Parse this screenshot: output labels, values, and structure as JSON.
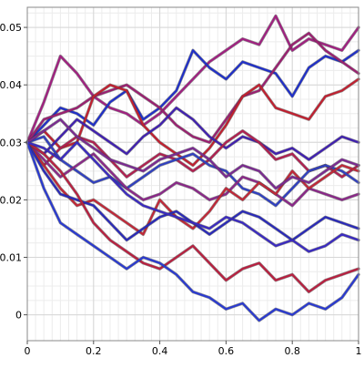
{
  "chart_data": {
    "type": "line",
    "title": "",
    "xlabel": "",
    "ylabel": "",
    "xlim": [
      0,
      1
    ],
    "ylim": [
      -0.0045,
      0.0535
    ],
    "grid": true,
    "legend": "none",
    "x_ticks": [
      0,
      0.2,
      0.4,
      0.6,
      0.8,
      1
    ],
    "x_tick_labels": [
      "0",
      "0.2",
      "0.4",
      "0.6",
      "0.8",
      "1"
    ],
    "y_ticks": [
      0,
      0.01,
      0.02,
      0.03,
      0.04,
      0.05
    ],
    "y_tick_labels": [
      "0",
      "0.01",
      "0.02",
      "0.03",
      "0.04",
      "0.05"
    ],
    "x": [
      0,
      0.05,
      0.1,
      0.15,
      0.2,
      0.25,
      0.3,
      0.35,
      0.4,
      0.45,
      0.5,
      0.55,
      0.6,
      0.65,
      0.7,
      0.75,
      0.8,
      0.85,
      0.9,
      0.95,
      1.0
    ],
    "series": [
      {
        "color": "#a02080",
        "values": [
          0.03,
          0.037,
          0.045,
          0.042,
          0.038,
          0.036,
          0.035,
          0.033,
          0.035,
          0.038,
          0.041,
          0.044,
          0.046,
          0.048,
          0.047,
          0.052,
          0.046,
          0.048,
          0.047,
          0.046,
          0.05
        ]
      },
      {
        "color": "#2030c8",
        "values": [
          0.03,
          0.033,
          0.036,
          0.035,
          0.033,
          0.037,
          0.039,
          0.034,
          0.036,
          0.039,
          0.046,
          0.043,
          0.041,
          0.044,
          0.043,
          0.042,
          0.038,
          0.043,
          0.045,
          0.044,
          0.046
        ]
      },
      {
        "color": "#9a2070",
        "values": [
          0.03,
          0.034,
          0.035,
          0.036,
          0.038,
          0.039,
          0.04,
          0.038,
          0.036,
          0.033,
          0.031,
          0.03,
          0.034,
          0.038,
          0.039,
          0.043,
          0.047,
          0.049,
          0.046,
          0.044,
          0.042
        ]
      },
      {
        "color": "#c02030",
        "values": [
          0.03,
          0.032,
          0.029,
          0.03,
          0.038,
          0.04,
          0.039,
          0.033,
          0.03,
          0.028,
          0.026,
          0.029,
          0.033,
          0.038,
          0.04,
          0.036,
          0.035,
          0.034,
          0.038,
          0.039,
          0.041
        ]
      },
      {
        "color": "#4020b0",
        "values": [
          0.03,
          0.028,
          0.031,
          0.034,
          0.032,
          0.03,
          0.028,
          0.031,
          0.033,
          0.036,
          0.034,
          0.031,
          0.029,
          0.031,
          0.03,
          0.028,
          0.029,
          0.027,
          0.029,
          0.031,
          0.03
        ]
      },
      {
        "color": "#b02050",
        "values": [
          0.03,
          0.026,
          0.029,
          0.031,
          0.03,
          0.027,
          0.024,
          0.026,
          0.028,
          0.027,
          0.025,
          0.027,
          0.03,
          0.032,
          0.03,
          0.027,
          0.028,
          0.025,
          0.026,
          0.024,
          0.026
        ]
      },
      {
        "color": "#3040c0",
        "values": [
          0.03,
          0.031,
          0.027,
          0.025,
          0.023,
          0.024,
          0.022,
          0.024,
          0.026,
          0.027,
          0.028,
          0.026,
          0.025,
          0.022,
          0.021,
          0.019,
          0.022,
          0.025,
          0.026,
          0.025,
          0.023
        ]
      },
      {
        "color": "#8a2888",
        "values": [
          0.03,
          0.027,
          0.024,
          0.026,
          0.028,
          0.025,
          0.022,
          0.02,
          0.021,
          0.023,
          0.022,
          0.02,
          0.021,
          0.024,
          0.023,
          0.021,
          0.019,
          0.022,
          0.021,
          0.02,
          0.021
        ]
      },
      {
        "color": "#c02838",
        "values": [
          0.03,
          0.026,
          0.022,
          0.019,
          0.02,
          0.018,
          0.016,
          0.014,
          0.02,
          0.017,
          0.015,
          0.018,
          0.022,
          0.02,
          0.023,
          0.021,
          0.025,
          0.022,
          0.024,
          0.026,
          0.025
        ]
      },
      {
        "color": "#2a2ab8",
        "values": [
          0.03,
          0.025,
          0.021,
          0.02,
          0.019,
          0.016,
          0.013,
          0.015,
          0.017,
          0.018,
          0.016,
          0.014,
          0.016,
          0.018,
          0.017,
          0.015,
          0.013,
          0.015,
          0.017,
          0.016,
          0.015
        ]
      },
      {
        "color": "#b82040",
        "values": [
          0.03,
          0.028,
          0.025,
          0.021,
          0.016,
          0.013,
          0.011,
          0.009,
          0.008,
          0.01,
          0.012,
          0.009,
          0.006,
          0.008,
          0.009,
          0.006,
          0.007,
          0.004,
          0.006,
          0.007,
          0.008
        ]
      },
      {
        "color": "#2a3ad0",
        "values": [
          0.03,
          0.022,
          0.016,
          0.014,
          0.012,
          0.01,
          0.008,
          0.01,
          0.009,
          0.007,
          0.004,
          0.003,
          0.001,
          0.002,
          -0.001,
          0.001,
          0.0,
          0.002,
          0.001,
          0.003,
          0.007
        ]
      },
      {
        "color": "#7a2a90",
        "values": [
          0.03,
          0.032,
          0.034,
          0.031,
          0.029,
          0.027,
          0.026,
          0.025,
          0.027,
          0.028,
          0.029,
          0.027,
          0.024,
          0.026,
          0.025,
          0.022,
          0.024,
          0.023,
          0.025,
          0.027,
          0.026
        ]
      },
      {
        "color": "#3a2ac0",
        "values": [
          0.03,
          0.029,
          0.027,
          0.03,
          0.027,
          0.024,
          0.021,
          0.019,
          0.018,
          0.017,
          0.016,
          0.015,
          0.017,
          0.016,
          0.014,
          0.012,
          0.013,
          0.011,
          0.012,
          0.014,
          0.013
        ]
      }
    ]
  }
}
